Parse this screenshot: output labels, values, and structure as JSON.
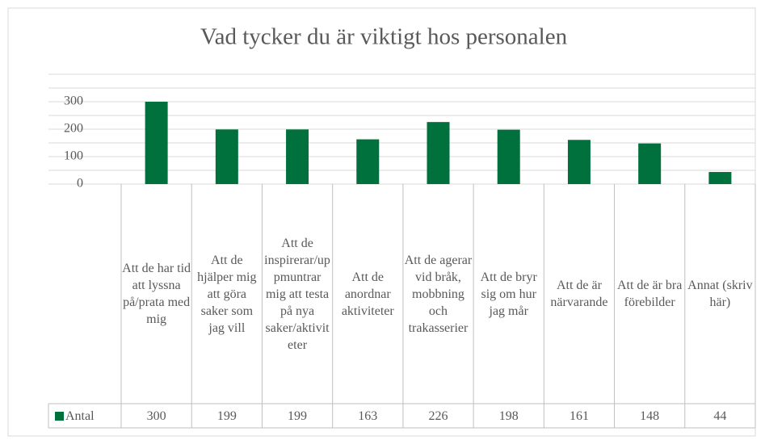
{
  "chart_data": {
    "type": "bar",
    "title": "Vad tycker du är viktigt hos personalen",
    "categories": [
      "Att de har tid att lyssna på/prata med mig",
      "Att de hjälper mig att göra saker som jag vill",
      "Att de inspirerar/uppmuntrar mig att testa på nya saker/aktiviteter",
      "Att de anordnar aktiviteter",
      "Att de agerar vid bråk, mobbning och trakasserier",
      "Att de bryr sig om hur jag mår",
      "Att de är närvarande",
      "Att de är bra förebilder",
      "Annat (skriv här)"
    ],
    "series": [
      {
        "name": "Antal",
        "color": "#00703c",
        "values": [
          300,
          199,
          199,
          163,
          226,
          198,
          161,
          148,
          44
        ]
      }
    ],
    "ylim": [
      0,
      400
    ],
    "yticks": [
      0,
      100,
      200,
      300
    ],
    "grid_lines": [
      0,
      50,
      100,
      150,
      200,
      250,
      300,
      350,
      400
    ],
    "grid": true,
    "data_table": true
  }
}
